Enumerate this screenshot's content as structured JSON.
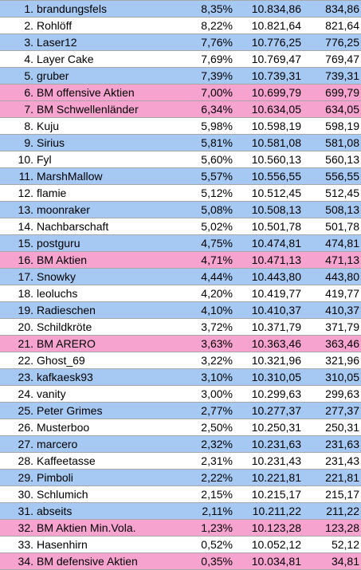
{
  "colors": {
    "blue": "#a6c9f4",
    "white": "#ffffff",
    "pink": "#f7a3cf"
  },
  "rows": [
    {
      "rank": "1.",
      "name": "brandungsfels",
      "pct": "8,35%",
      "total": "10.834,86",
      "gain": "834,86",
      "color": "blue"
    },
    {
      "rank": "2.",
      "name": "Rohlöff",
      "pct": "8,22%",
      "total": "10.821,64",
      "gain": "821,64",
      "color": "white"
    },
    {
      "rank": "3.",
      "name": "Laser12",
      "pct": "7,76%",
      "total": "10.776,25",
      "gain": "776,25",
      "color": "blue"
    },
    {
      "rank": "4.",
      "name": "Layer Cake",
      "pct": "7,69%",
      "total": "10.769,47",
      "gain": "769,47",
      "color": "white"
    },
    {
      "rank": "5.",
      "name": "gruber",
      "pct": "7,39%",
      "total": "10.739,31",
      "gain": "739,31",
      "color": "blue"
    },
    {
      "rank": "6.",
      "name": "BM offensive Aktien",
      "pct": "7,00%",
      "total": "10.699,79",
      "gain": "699,79",
      "color": "pink"
    },
    {
      "rank": "7.",
      "name": "BM Schwellenländer",
      "pct": "6,34%",
      "total": "10.634,05",
      "gain": "634,05",
      "color": "pink"
    },
    {
      "rank": "8.",
      "name": "Kuju",
      "pct": "5,98%",
      "total": "10.598,19",
      "gain": "598,19",
      "color": "white"
    },
    {
      "rank": "9.",
      "name": "Sirius",
      "pct": "5,81%",
      "total": "10.581,08",
      "gain": "581,08",
      "color": "blue"
    },
    {
      "rank": "10.",
      "name": "Fyl",
      "pct": "5,60%",
      "total": "10.560,13",
      "gain": "560,13",
      "color": "white"
    },
    {
      "rank": "11.",
      "name": "MarshMallow",
      "pct": "5,57%",
      "total": "10.556,55",
      "gain": "556,55",
      "color": "blue"
    },
    {
      "rank": "12.",
      "name": "flamie",
      "pct": "5,12%",
      "total": "10.512,45",
      "gain": "512,45",
      "color": "white"
    },
    {
      "rank": "13.",
      "name": "moonraker",
      "pct": "5,08%",
      "total": "10.508,13",
      "gain": "508,13",
      "color": "blue"
    },
    {
      "rank": "14.",
      "name": "Nachbarschaft",
      "pct": "5,02%",
      "total": "10.501,78",
      "gain": "501,78",
      "color": "white"
    },
    {
      "rank": "15.",
      "name": "postguru",
      "pct": "4,75%",
      "total": "10.474,81",
      "gain": "474,81",
      "color": "blue"
    },
    {
      "rank": "16.",
      "name": "BM Aktien",
      "pct": "4,71%",
      "total": "10.471,13",
      "gain": "471,13",
      "color": "pink"
    },
    {
      "rank": "17.",
      "name": "Snowky",
      "pct": "4,44%",
      "total": "10.443,80",
      "gain": "443,80",
      "color": "blue"
    },
    {
      "rank": "18.",
      "name": "leoluchs",
      "pct": "4,20%",
      "total": "10.419,77",
      "gain": "419,77",
      "color": "white"
    },
    {
      "rank": "19.",
      "name": "Radieschen",
      "pct": "4,10%",
      "total": "10.410,37",
      "gain": "410,37",
      "color": "blue"
    },
    {
      "rank": "20.",
      "name": "Schildkröte",
      "pct": "3,72%",
      "total": "10.371,79",
      "gain": "371,79",
      "color": "white"
    },
    {
      "rank": "21.",
      "name": "BM ARERO",
      "pct": "3,63%",
      "total": "10.363,46",
      "gain": "363,46",
      "color": "pink"
    },
    {
      "rank": "22.",
      "name": "Ghost_69",
      "pct": "3,22%",
      "total": "10.321,96",
      "gain": "321,96",
      "color": "white"
    },
    {
      "rank": "23.",
      "name": "kafkaesk93",
      "pct": "3,10%",
      "total": "10.310,05",
      "gain": "310,05",
      "color": "blue"
    },
    {
      "rank": "24.",
      "name": "vanity",
      "pct": "3,00%",
      "total": "10.299,63",
      "gain": "299,63",
      "color": "white"
    },
    {
      "rank": "25.",
      "name": "Peter Grimes",
      "pct": "2,77%",
      "total": "10.277,37",
      "gain": "277,37",
      "color": "blue"
    },
    {
      "rank": "26.",
      "name": "Musterboo",
      "pct": "2,50%",
      "total": "10.250,31",
      "gain": "250,31",
      "color": "white"
    },
    {
      "rank": "27.",
      "name": "marcero",
      "pct": "2,32%",
      "total": "10.231,63",
      "gain": "231,63",
      "color": "blue"
    },
    {
      "rank": "28.",
      "name": "Kaffeetasse",
      "pct": "2,31%",
      "total": "10.231,43",
      "gain": "231,43",
      "color": "white"
    },
    {
      "rank": "29.",
      "name": "Pimboli",
      "pct": "2,22%",
      "total": "10.221,81",
      "gain": "221,81",
      "color": "blue"
    },
    {
      "rank": "30.",
      "name": "Schlumich",
      "pct": "2,15%",
      "total": "10.215,17",
      "gain": "215,17",
      "color": "white"
    },
    {
      "rank": "31.",
      "name": "abseits",
      "pct": "2,11%",
      "total": "10.211,22",
      "gain": "211,22",
      "color": "blue"
    },
    {
      "rank": "32.",
      "name": "BM Aktien Min.Vola.",
      "pct": "1,23%",
      "total": "10.123,28",
      "gain": "123,28",
      "color": "pink"
    },
    {
      "rank": "33.",
      "name": "Hasenhirn",
      "pct": "0,52%",
      "total": "10.052,12",
      "gain": "52,12",
      "color": "white"
    },
    {
      "rank": "34.",
      "name": "BM defensive Aktien",
      "pct": "0,35%",
      "total": "10.034,81",
      "gain": "34,81",
      "color": "pink"
    }
  ]
}
